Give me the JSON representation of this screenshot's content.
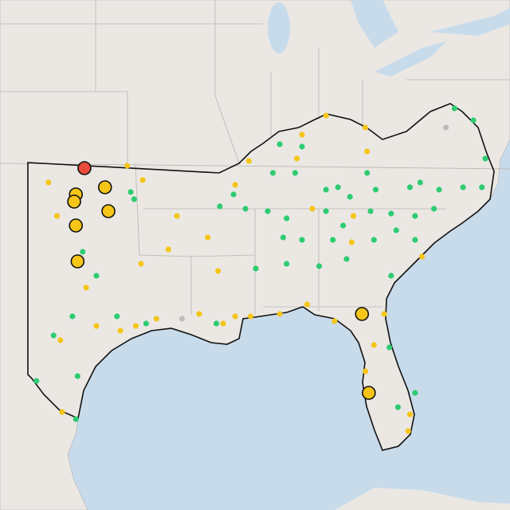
{
  "markers": [
    {
      "color": "#2ecc71",
      "large": false,
      "points": [
        [
          -78.1,
          39.3
        ],
        [
          -77.0,
          38.8
        ],
        [
          -76.3,
          37.2
        ],
        [
          -88.3,
          37.8
        ],
        [
          -87.0,
          37.7
        ],
        [
          -88.7,
          36.6
        ],
        [
          -87.4,
          36.6
        ],
        [
          -83.2,
          36.6
        ],
        [
          -85.6,
          35.9
        ],
        [
          -84.9,
          36.0
        ],
        [
          -84.2,
          35.6
        ],
        [
          -82.7,
          35.9
        ],
        [
          -80.7,
          36.0
        ],
        [
          -80.1,
          36.2
        ],
        [
          -79.0,
          35.9
        ],
        [
          -77.6,
          36.0
        ],
        [
          -76.5,
          36.0
        ],
        [
          -91.8,
          35.2
        ],
        [
          -91.0,
          35.7
        ],
        [
          -90.3,
          35.1
        ],
        [
          -89.0,
          35.0
        ],
        [
          -87.9,
          34.7
        ],
        [
          -85.6,
          35.0
        ],
        [
          -84.6,
          34.4
        ],
        [
          -83.0,
          35.0
        ],
        [
          -81.8,
          34.9
        ],
        [
          -80.4,
          34.8
        ],
        [
          -79.3,
          35.1
        ],
        [
          -88.1,
          33.9
        ],
        [
          -87.0,
          33.8
        ],
        [
          -85.2,
          33.8
        ],
        [
          -84.4,
          33.0
        ],
        [
          -82.8,
          33.8
        ],
        [
          -81.5,
          34.2
        ],
        [
          -80.4,
          33.8
        ],
        [
          -89.7,
          32.6
        ],
        [
          -86.0,
          32.7
        ],
        [
          -87.9,
          32.8
        ],
        [
          -81.8,
          32.3
        ],
        [
          -99.8,
          33.3
        ],
        [
          -99.0,
          32.3
        ],
        [
          -97.0,
          35.8
        ],
        [
          -96.8,
          35.5
        ],
        [
          -97.8,
          30.6
        ],
        [
          -96.1,
          30.3
        ],
        [
          -101.5,
          29.8
        ],
        [
          -100.4,
          30.6
        ],
        [
          -100.1,
          28.1
        ],
        [
          -102.5,
          27.9
        ],
        [
          -100.2,
          26.3
        ],
        [
          -80.4,
          27.4
        ],
        [
          -81.4,
          26.8
        ],
        [
          -81.9,
          29.3
        ],
        [
          -92.0,
          30.3
        ]
      ]
    },
    {
      "color": "#f5c518",
      "large": false,
      "points": [
        [
          -101.8,
          36.2
        ],
        [
          -101.3,
          34.8
        ],
        [
          -97.2,
          36.9
        ],
        [
          -96.3,
          36.3
        ],
        [
          -94.3,
          34.8
        ],
        [
          -94.8,
          33.4
        ],
        [
          -96.4,
          32.8
        ],
        [
          -92.5,
          33.9
        ],
        [
          -91.9,
          32.5
        ],
        [
          -90.9,
          36.1
        ],
        [
          -90.1,
          37.1
        ],
        [
          -87.0,
          38.2
        ],
        [
          -85.6,
          39.0
        ],
        [
          -83.3,
          38.5
        ],
        [
          -83.2,
          37.5
        ],
        [
          -87.3,
          37.2
        ],
        [
          -86.4,
          35.1
        ],
        [
          -84.0,
          34.8
        ],
        [
          -84.1,
          33.7
        ],
        [
          -80.0,
          33.1
        ],
        [
          -99.0,
          30.2
        ],
        [
          -97.6,
          30.0
        ],
        [
          -96.7,
          30.2
        ],
        [
          -95.5,
          30.5
        ],
        [
          -93.0,
          30.7
        ],
        [
          -91.6,
          30.3
        ],
        [
          -90.9,
          30.6
        ],
        [
          -90.0,
          30.6
        ],
        [
          -88.3,
          30.7
        ],
        [
          -86.7,
          31.1
        ],
        [
          -85.1,
          30.4
        ],
        [
          -82.2,
          30.7
        ],
        [
          -82.8,
          29.4
        ],
        [
          -83.3,
          28.3
        ],
        [
          -80.7,
          26.5
        ],
        [
          -80.8,
          25.8
        ],
        [
          -101.0,
          26.6
        ],
        [
          -101.1,
          29.6
        ],
        [
          -99.6,
          31.8
        ]
      ]
    },
    {
      "color": "#bdbdbd",
      "large": false,
      "points": [
        [
          -94.0,
          30.5
        ],
        [
          -78.6,
          38.5
        ]
      ]
    },
    {
      "color": "#f5c518",
      "large": true,
      "points": [
        [
          -100.2,
          35.7
        ],
        [
          -100.3,
          35.4
        ],
        [
          -98.5,
          36.0
        ],
        [
          -98.3,
          35.0
        ],
        [
          -100.2,
          34.4
        ],
        [
          -100.1,
          32.9
        ],
        [
          -83.5,
          30.7
        ],
        [
          -83.1,
          27.4
        ]
      ]
    },
    {
      "color": "#e74c3c",
      "large": true,
      "points": [
        [
          -99.7,
          36.8
        ]
      ]
    }
  ]
}
